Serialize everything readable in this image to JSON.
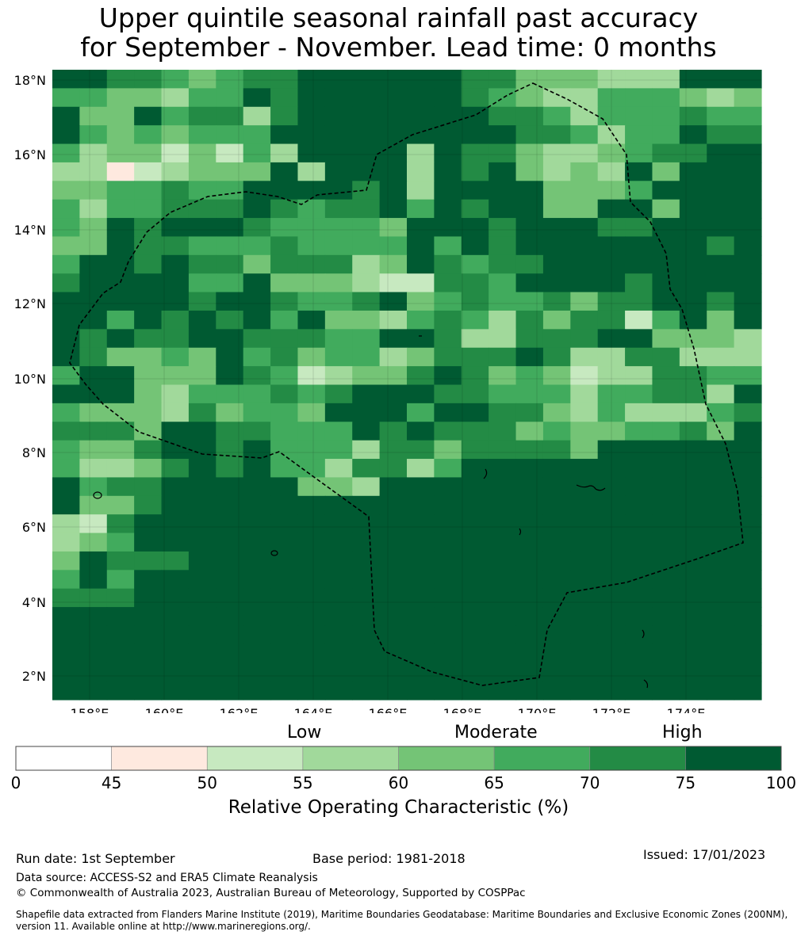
{
  "title_line1": "Upper quintile seasonal rainfall past accuracy",
  "title_line2": "for September - November. Lead time: 0 months",
  "map": {
    "lat_labels": [
      "18°N",
      "16°N",
      "14°N",
      "12°N",
      "10°N",
      "8°N",
      "6°N",
      "4°N",
      "2°N"
    ],
    "lon_labels": [
      "158°E",
      "160°E",
      "162°E",
      "164°E",
      "166°E",
      "168°E",
      "170°E",
      "172°E",
      "174°E"
    ],
    "grid_rows": [
      "77665456677777766444333777",
      "55443557677777765433555434",
      "74475663677777776653555655",
      "75454555777777777665355766",
      "53442425377773766433456677",
      "33123444737773767434374777",
      "44556557777673777744457777",
      "53556667656675767744774777",
      "54767776555547776777667777",
      "44766555655557576777777767",
      "57767664666347656677777777",
      "67777557444322665777767777",
      "77777677655674565564667767",
      "77576767574435653646625747",
      "76766776665577633666774443",
      "76445475645534666763366333",
      "57744476523446764542336655",
      "77743555656777665553556637",
      "54443645547775776643533356",
      "66647766555767666454455647",
      "54467767555366466664777777",
      "53346767553663577777777777",
      "75667777744377777777777777",
      "74467777777777777777777777",
      "32677777777777777777777777",
      "34577777777777777777777777",
      "47666777777777777777777777",
      "57577777777777777777777777",
      "66677777777777777777777777",
      "77777777777777777777777777",
      "77777777777777777777777777",
      "77777777777777777777777777",
      "77777777777777777777777777",
      "77777777777777777777777777"
    ]
  },
  "legend": {
    "categories": [
      "Low",
      "Moderate",
      "High"
    ],
    "bins": [
      {
        "from": 0,
        "to": 45,
        "color": "#ffffff"
      },
      {
        "from": 45,
        "to": 50,
        "color": "#fee9df"
      },
      {
        "from": 50,
        "to": 55,
        "color": "#c7e9c0"
      },
      {
        "from": 55,
        "to": 60,
        "color": "#a1d99b"
      },
      {
        "from": 60,
        "to": 65,
        "color": "#74c476"
      },
      {
        "from": 65,
        "to": 70,
        "color": "#41ab5d"
      },
      {
        "from": 70,
        "to": 75,
        "color": "#238b45"
      },
      {
        "from": 75,
        "to": 100,
        "color": "#005a32"
      }
    ],
    "ticks": [
      "0",
      "45",
      "50",
      "55",
      "60",
      "65",
      "70",
      "75",
      "100"
    ],
    "label": "Relative Operating Characteristic (%)"
  },
  "footer": {
    "run_date": "Run date: 1st September",
    "base_period": "Base period: 1981-2018",
    "issued": "Issued: 17/01/2023",
    "data_source": "Data source: ACCESS-S2 and ERA5 Climate Reanalysis",
    "copyright": "© Commonwealth of Australia 2023, Australian Bureau of Meteorology, Supported by COSPPac",
    "shapefile": "Shapefile data extracted from Flanders Marine Institute (2019), Maritime Boundaries Geodatabase: Maritime Boundaries and Exclusive Economic Zones (200NM), version 11. Available online at http://www.marineregions.org/."
  }
}
